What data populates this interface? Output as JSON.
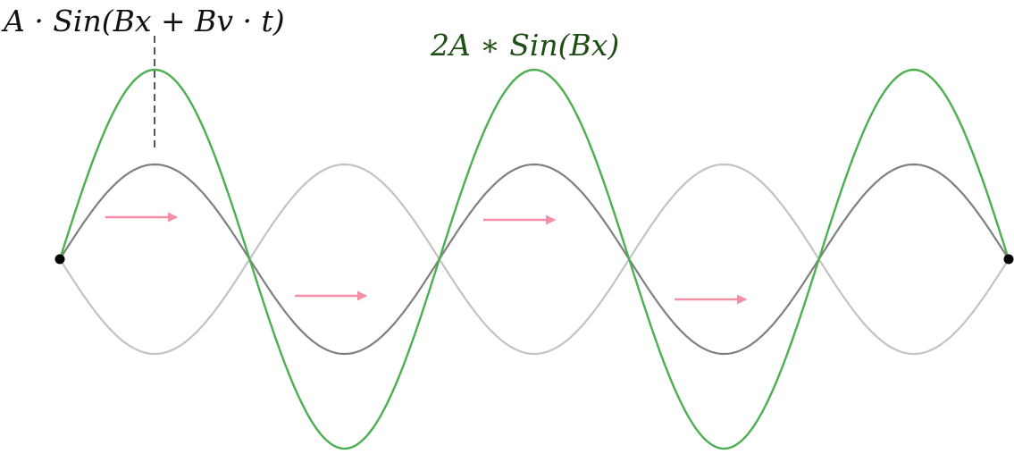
{
  "labels": {
    "traveling_wave": "A · Sin(Bx + Bv · t)",
    "standing_wave": "2A ∗ Sin(Bx)"
  },
  "colors": {
    "standing": "#4caf50",
    "forward": "#7f7f7f",
    "reflected": "#c3c3c3",
    "arrow": "#f48fa8",
    "label_standing": "#1f4d16",
    "label_traveling": "#111111",
    "endpoint": "#000000"
  },
  "wave": {
    "half_periods": 5,
    "amplitude": 1,
    "standing_amplitude": 2
  },
  "arrows": {
    "count": 4,
    "direction": "right"
  },
  "endpoints": {
    "count": 2
  }
}
